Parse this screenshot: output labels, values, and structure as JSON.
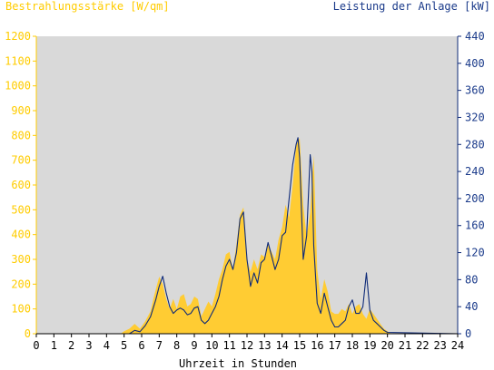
{
  "chart_data": {
    "type": "area",
    "title_left": "Bestrahlungsstärke [W/qm]",
    "title_right": "Leistung der Anlage [kW]",
    "xlabel": "Uhrzeit in Stunden",
    "xlim": [
      0,
      24
    ],
    "x_ticks": [
      "0",
      "1",
      "2",
      "3",
      "4",
      "5",
      "6",
      "7",
      "8",
      "9",
      "10",
      "11",
      "12",
      "13",
      "14",
      "15",
      "16",
      "17",
      "18",
      "19",
      "20",
      "21",
      "22",
      "23",
      "24"
    ],
    "y_left": {
      "lim": [
        0,
        1200
      ],
      "ticks": [
        "0",
        "100",
        "200",
        "300",
        "400",
        "500",
        "600",
        "700",
        "800",
        "900",
        "1000",
        "1100",
        "1200"
      ]
    },
    "y_right": {
      "lim": [
        0,
        440
      ],
      "ticks": [
        "0",
        "40",
        "80",
        "120",
        "160",
        "200",
        "240",
        "280",
        "320",
        "360",
        "400",
        "440"
      ]
    },
    "grid": false,
    "colors": {
      "background": "#d9d9d9",
      "irradiance": "#ffcc33",
      "power": "#0e2a78",
      "left_text": "#ffcc00",
      "right_text": "#1a3a8a"
    },
    "series": [
      {
        "name": "Bestrahlungsstärke [W/qm]",
        "axis": "left",
        "style": "filled-area",
        "x": [
          0,
          4.8,
          5.0,
          5.3,
          5.6,
          5.9,
          6.2,
          6.5,
          6.7,
          7.0,
          7.2,
          7.4,
          7.6,
          7.8,
          8.0,
          8.2,
          8.4,
          8.6,
          8.8,
          9.0,
          9.2,
          9.4,
          9.6,
          9.8,
          10.0,
          10.2,
          10.4,
          10.6,
          10.8,
          11.0,
          11.2,
          11.4,
          11.6,
          11.8,
          12.0,
          12.2,
          12.4,
          12.6,
          12.8,
          13.0,
          13.2,
          13.4,
          13.6,
          13.8,
          14.0,
          14.2,
          14.4,
          14.6,
          14.8,
          15.0,
          15.2,
          15.4,
          15.6,
          15.8,
          16.0,
          16.2,
          16.4,
          16.6,
          16.8,
          17.0,
          17.2,
          17.4,
          17.6,
          17.8,
          18.0,
          18.2,
          18.4,
          18.6,
          18.8,
          19.0,
          19.2,
          19.4,
          19.6,
          19.8,
          20.0,
          20.2,
          24
        ],
        "values": [
          0,
          0,
          10,
          20,
          40,
          20,
          50,
          90,
          150,
          230,
          200,
          140,
          100,
          140,
          100,
          150,
          160,
          110,
          120,
          150,
          140,
          70,
          100,
          130,
          110,
          160,
          220,
          260,
          320,
          330,
          260,
          360,
          480,
          510,
          300,
          250,
          300,
          260,
          320,
          310,
          360,
          330,
          300,
          380,
          430,
          520,
          470,
          600,
          760,
          790,
          520,
          390,
          490,
          720,
          260,
          140,
          220,
          170,
          90,
          80,
          80,
          100,
          90,
          120,
          80,
          110,
          120,
          80,
          60,
          100,
          80,
          60,
          40,
          20,
          10,
          0,
          0
        ]
      },
      {
        "name": "Leistung der Anlage [kW]",
        "axis": "right",
        "style": "line",
        "x": [
          0,
          5.3,
          5.6,
          5.9,
          6.2,
          6.5,
          6.8,
          7.0,
          7.2,
          7.4,
          7.6,
          7.8,
          8.0,
          8.2,
          8.4,
          8.6,
          8.8,
          9.0,
          9.2,
          9.4,
          9.6,
          9.8,
          10.0,
          10.2,
          10.4,
          10.6,
          10.8,
          11.0,
          11.2,
          11.4,
          11.6,
          11.8,
          12.0,
          12.2,
          12.4,
          12.6,
          12.8,
          13.0,
          13.2,
          13.4,
          13.6,
          13.8,
          14.0,
          14.2,
          14.4,
          14.6,
          14.8,
          14.9,
          15.0,
          15.2,
          15.4,
          15.6,
          15.7,
          15.8,
          16.0,
          16.2,
          16.4,
          16.6,
          16.8,
          17.0,
          17.2,
          17.4,
          17.6,
          17.8,
          18.0,
          18.2,
          18.4,
          18.6,
          18.8,
          19.0,
          19.2,
          19.4,
          19.6,
          19.8,
          20.0,
          24
        ],
        "values": [
          0,
          0,
          5,
          3,
          12,
          25,
          50,
          70,
          85,
          60,
          40,
          30,
          35,
          38,
          35,
          28,
          30,
          38,
          40,
          20,
          15,
          20,
          30,
          40,
          55,
          80,
          100,
          110,
          95,
          120,
          170,
          180,
          110,
          70,
          90,
          75,
          105,
          110,
          135,
          115,
          95,
          110,
          145,
          150,
          200,
          250,
          280,
          290,
          260,
          110,
          145,
          265,
          240,
          130,
          45,
          30,
          60,
          40,
          20,
          10,
          10,
          15,
          20,
          40,
          50,
          30,
          30,
          40,
          90,
          35,
          20,
          15,
          10,
          5,
          2,
          0
        ]
      }
    ]
  }
}
